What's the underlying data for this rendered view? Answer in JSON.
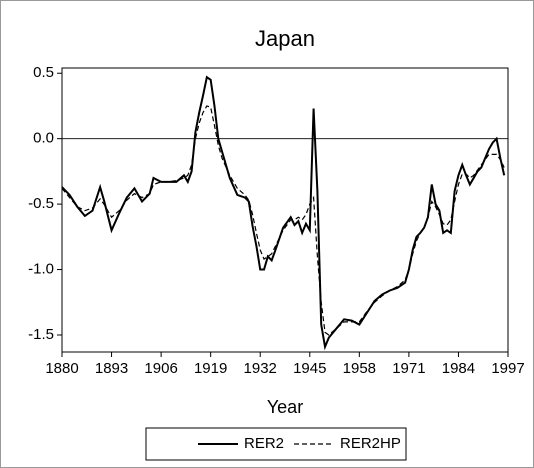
{
  "chart_data": {
    "type": "line",
    "title": "Japan",
    "xlabel": "Year",
    "x": [
      1880,
      1882,
      1884,
      1886,
      1888,
      1890,
      1891,
      1893,
      1895,
      1897,
      1899,
      1901,
      1903,
      1904,
      1906,
      1908,
      1910,
      1912,
      1913,
      1914,
      1915,
      1916,
      1917,
      1918,
      1919,
      1920,
      1921,
      1922,
      1924,
      1926,
      1928,
      1929,
      1930,
      1931,
      1932,
      1933,
      1934,
      1935,
      1936,
      1938,
      1940,
      1941,
      1942,
      1943,
      1944,
      1945,
      1946,
      1947,
      1948,
      1949,
      1950,
      1952,
      1954,
      1956,
      1958,
      1960,
      1962,
      1964,
      1966,
      1968,
      1970,
      1971,
      1972,
      1973,
      1974,
      1975,
      1976,
      1977,
      1978,
      1979,
      1980,
      1981,
      1982,
      1983,
      1984,
      1985,
      1986,
      1987,
      1988,
      1989,
      1990,
      1991,
      1992,
      1993,
      1994,
      1995,
      1996
    ],
    "series": [
      {
        "name": "RER2",
        "color": "#000000",
        "dash": "solid",
        "values": [
          -0.37,
          -0.43,
          -0.52,
          -0.59,
          -0.55,
          -0.37,
          -0.47,
          -0.7,
          -0.57,
          -0.45,
          -0.38,
          -0.48,
          -0.42,
          -0.3,
          -0.33,
          -0.33,
          -0.33,
          -0.28,
          -0.33,
          -0.25,
          0.05,
          0.2,
          0.33,
          0.47,
          0.45,
          0.25,
          0.0,
          -0.1,
          -0.3,
          -0.43,
          -0.45,
          -0.48,
          -0.67,
          -0.82,
          -1.0,
          -1.0,
          -0.9,
          -0.93,
          -0.85,
          -0.68,
          -0.6,
          -0.66,
          -0.63,
          -0.72,
          -0.65,
          -0.7,
          0.23,
          -0.4,
          -1.42,
          -1.59,
          -1.52,
          -1.45,
          -1.38,
          -1.39,
          -1.42,
          -1.33,
          -1.24,
          -1.19,
          -1.16,
          -1.14,
          -1.1,
          -1.0,
          -0.85,
          -0.75,
          -0.72,
          -0.68,
          -0.6,
          -0.35,
          -0.5,
          -0.55,
          -0.72,
          -0.7,
          -0.72,
          -0.4,
          -0.28,
          -0.2,
          -0.28,
          -0.35,
          -0.3,
          -0.25,
          -0.22,
          -0.15,
          -0.08,
          -0.03,
          0.0,
          -0.15,
          -0.28
        ]
      },
      {
        "name": "RER2HP",
        "color": "#000000",
        "dash": "dashed",
        "values": [
          -0.38,
          -0.45,
          -0.52,
          -0.55,
          -0.53,
          -0.46,
          -0.5,
          -0.6,
          -0.55,
          -0.47,
          -0.42,
          -0.45,
          -0.42,
          -0.35,
          -0.33,
          -0.33,
          -0.32,
          -0.3,
          -0.28,
          -0.2,
          0.0,
          0.12,
          0.2,
          0.25,
          0.24,
          0.1,
          -0.05,
          -0.15,
          -0.28,
          -0.38,
          -0.43,
          -0.47,
          -0.58,
          -0.72,
          -0.85,
          -0.92,
          -0.9,
          -0.88,
          -0.82,
          -0.7,
          -0.62,
          -0.62,
          -0.6,
          -0.62,
          -0.58,
          -0.5,
          -0.45,
          -0.9,
          -1.25,
          -1.48,
          -1.5,
          -1.45,
          -1.4,
          -1.4,
          -1.4,
          -1.32,
          -1.25,
          -1.2,
          -1.16,
          -1.13,
          -1.08,
          -1.0,
          -0.88,
          -0.78,
          -0.72,
          -0.68,
          -0.6,
          -0.48,
          -0.52,
          -0.58,
          -0.65,
          -0.66,
          -0.62,
          -0.48,
          -0.35,
          -0.27,
          -0.27,
          -0.3,
          -0.28,
          -0.24,
          -0.2,
          -0.16,
          -0.12,
          -0.12,
          -0.12,
          -0.16,
          -0.22
        ]
      }
    ],
    "xlim": [
      1880,
      1997
    ],
    "xticks": [
      1880,
      1893,
      1906,
      1919,
      1932,
      1945,
      1958,
      1971,
      1984,
      1997
    ],
    "ylim": [
      -1.63,
      0.54
    ],
    "yticks": [
      0.5,
      {
        "value": 0,
        "label": "0.0"
      },
      -0.5,
      {
        "value": -1,
        "label": "-1.0"
      },
      -1.5
    ],
    "legend": "bottom"
  }
}
